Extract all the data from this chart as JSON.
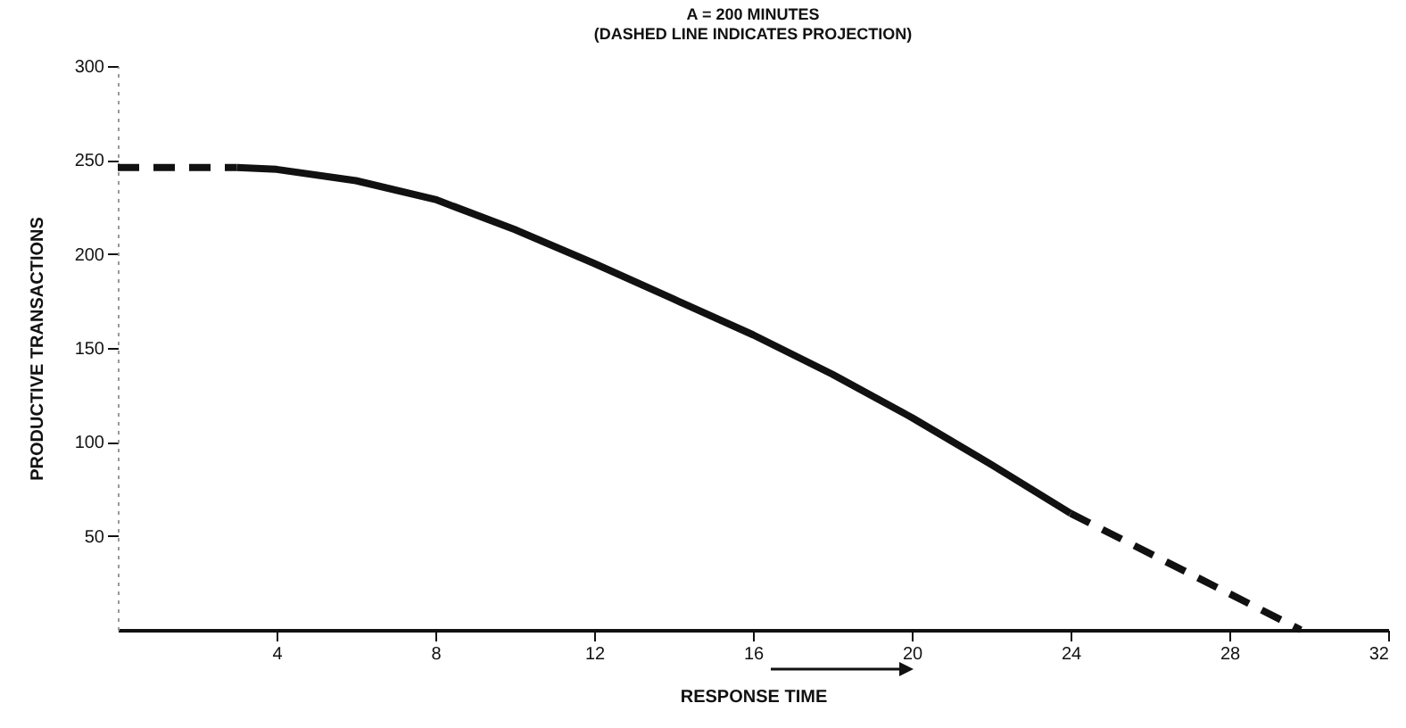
{
  "chart_data": {
    "type": "line",
    "title": "A = 200 MINUTES",
    "subtitle": "(DASHED LINE INDICATES PROJECTION)",
    "xlabel": "RESPONSE TIME",
    "ylabel": "PRODUCTIVE TRANSACTIONS",
    "xlim": [
      0,
      32
    ],
    "xticks": [
      4,
      8,
      12,
      16,
      20,
      24,
      28,
      32
    ],
    "ylim": [
      0,
      300
    ],
    "yticks": [
      50,
      100,
      150,
      200,
      250,
      300
    ],
    "series": [
      {
        "color": "#111111",
        "line_style": "dashed",
        "x": [
          0,
          3
        ],
        "values": [
          246,
          246
        ]
      },
      {
        "color": "#111111",
        "line_style": "solid",
        "x": [
          3,
          4,
          6,
          8,
          10,
          12,
          14,
          16,
          18,
          20,
          22,
          24
        ],
        "values": [
          246,
          245,
          239,
          229,
          213,
          195,
          176,
          157,
          136,
          113,
          88,
          62
        ]
      },
      {
        "color": "#111111",
        "line_style": "dashed",
        "x": [
          24,
          29.8
        ],
        "values": [
          62,
          0
        ]
      }
    ]
  }
}
